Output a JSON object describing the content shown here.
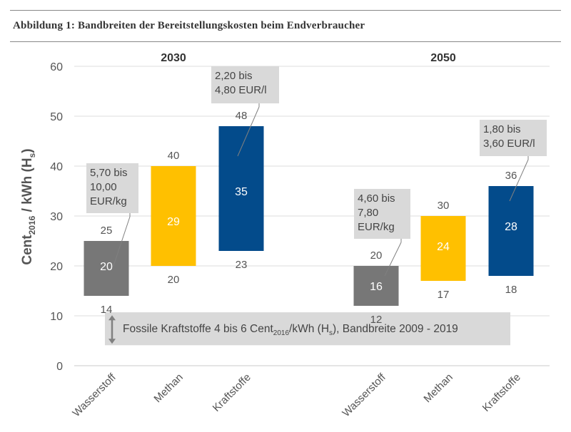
{
  "figure": {
    "caption": "Abbildung 1: Bandbreiten der Bereitstellungskosten beim Endverbraucher"
  },
  "chart_data": {
    "type": "bar",
    "ylabel_main": "Cent",
    "ylabel_sub": "2016",
    "ylabel_rest": " / kWh (H",
    "ylabel_sub2": "s",
    "ylabel_end": ")",
    "ylim": [
      0,
      60
    ],
    "yticks": [
      0,
      10,
      20,
      30,
      40,
      50,
      60
    ],
    "grid": true,
    "colors": {
      "Wasserstoff": "#777777",
      "Methan": "#FFC000",
      "Kraftstoffe": "#034B8B"
    },
    "groups": [
      {
        "year": "2030",
        "bars": [
          {
            "category": "Wasserstoff",
            "low": 14,
            "high": 25,
            "mid": 20,
            "low_label": "14",
            "high_label": "25",
            "mid_label": "20"
          },
          {
            "category": "Methan",
            "low": 20,
            "high": 40,
            "mid": 29,
            "low_label": "20",
            "high_label": "40",
            "mid_label": "29"
          },
          {
            "category": "Kraftstoffe",
            "low": 23,
            "high": 48,
            "mid": 35,
            "low_label": "23",
            "high_label": "48",
            "mid_label": "35"
          }
        ]
      },
      {
        "year": "2050",
        "bars": [
          {
            "category": "Wasserstoff",
            "low": 12,
            "high": 20,
            "mid": 16,
            "low_label": "12",
            "high_label": "20",
            "mid_label": "16"
          },
          {
            "category": "Methan",
            "low": 17,
            "high": 30,
            "mid": 24,
            "low_label": "17",
            "high_label": "30",
            "mid_label": "24"
          },
          {
            "category": "Kraftstoffe",
            "low": 18,
            "high": 36,
            "mid": 28,
            "low_label": "18",
            "high_label": "36",
            "mid_label": "28"
          }
        ]
      }
    ],
    "callouts": [
      {
        "lines": [
          "5,70 bis",
          "10,00",
          "EUR/kg"
        ],
        "target_group": 0,
        "target_bar": 0,
        "target_value": 20
      },
      {
        "lines": [
          "2,20 bis",
          "4,80 EUR/l"
        ],
        "target_group": 0,
        "target_bar": 2,
        "target_value": 42
      },
      {
        "lines": [
          "4,60 bis",
          "7,80",
          "EUR/kg"
        ],
        "target_group": 1,
        "target_bar": 0,
        "target_value": 18
      },
      {
        "lines": [
          "1,80 bis",
          "3,60 EUR/l"
        ],
        "target_group": 1,
        "target_bar": 2,
        "target_value": 33
      }
    ],
    "fossil_band": {
      "text_a": "Fossile Kraftstoffe  4 bis 6 Cent",
      "text_sub": "2016",
      "text_b": "/kWh (H",
      "text_sub2": "s",
      "text_c": "), Bandbreite 2009 - 2019"
    }
  }
}
